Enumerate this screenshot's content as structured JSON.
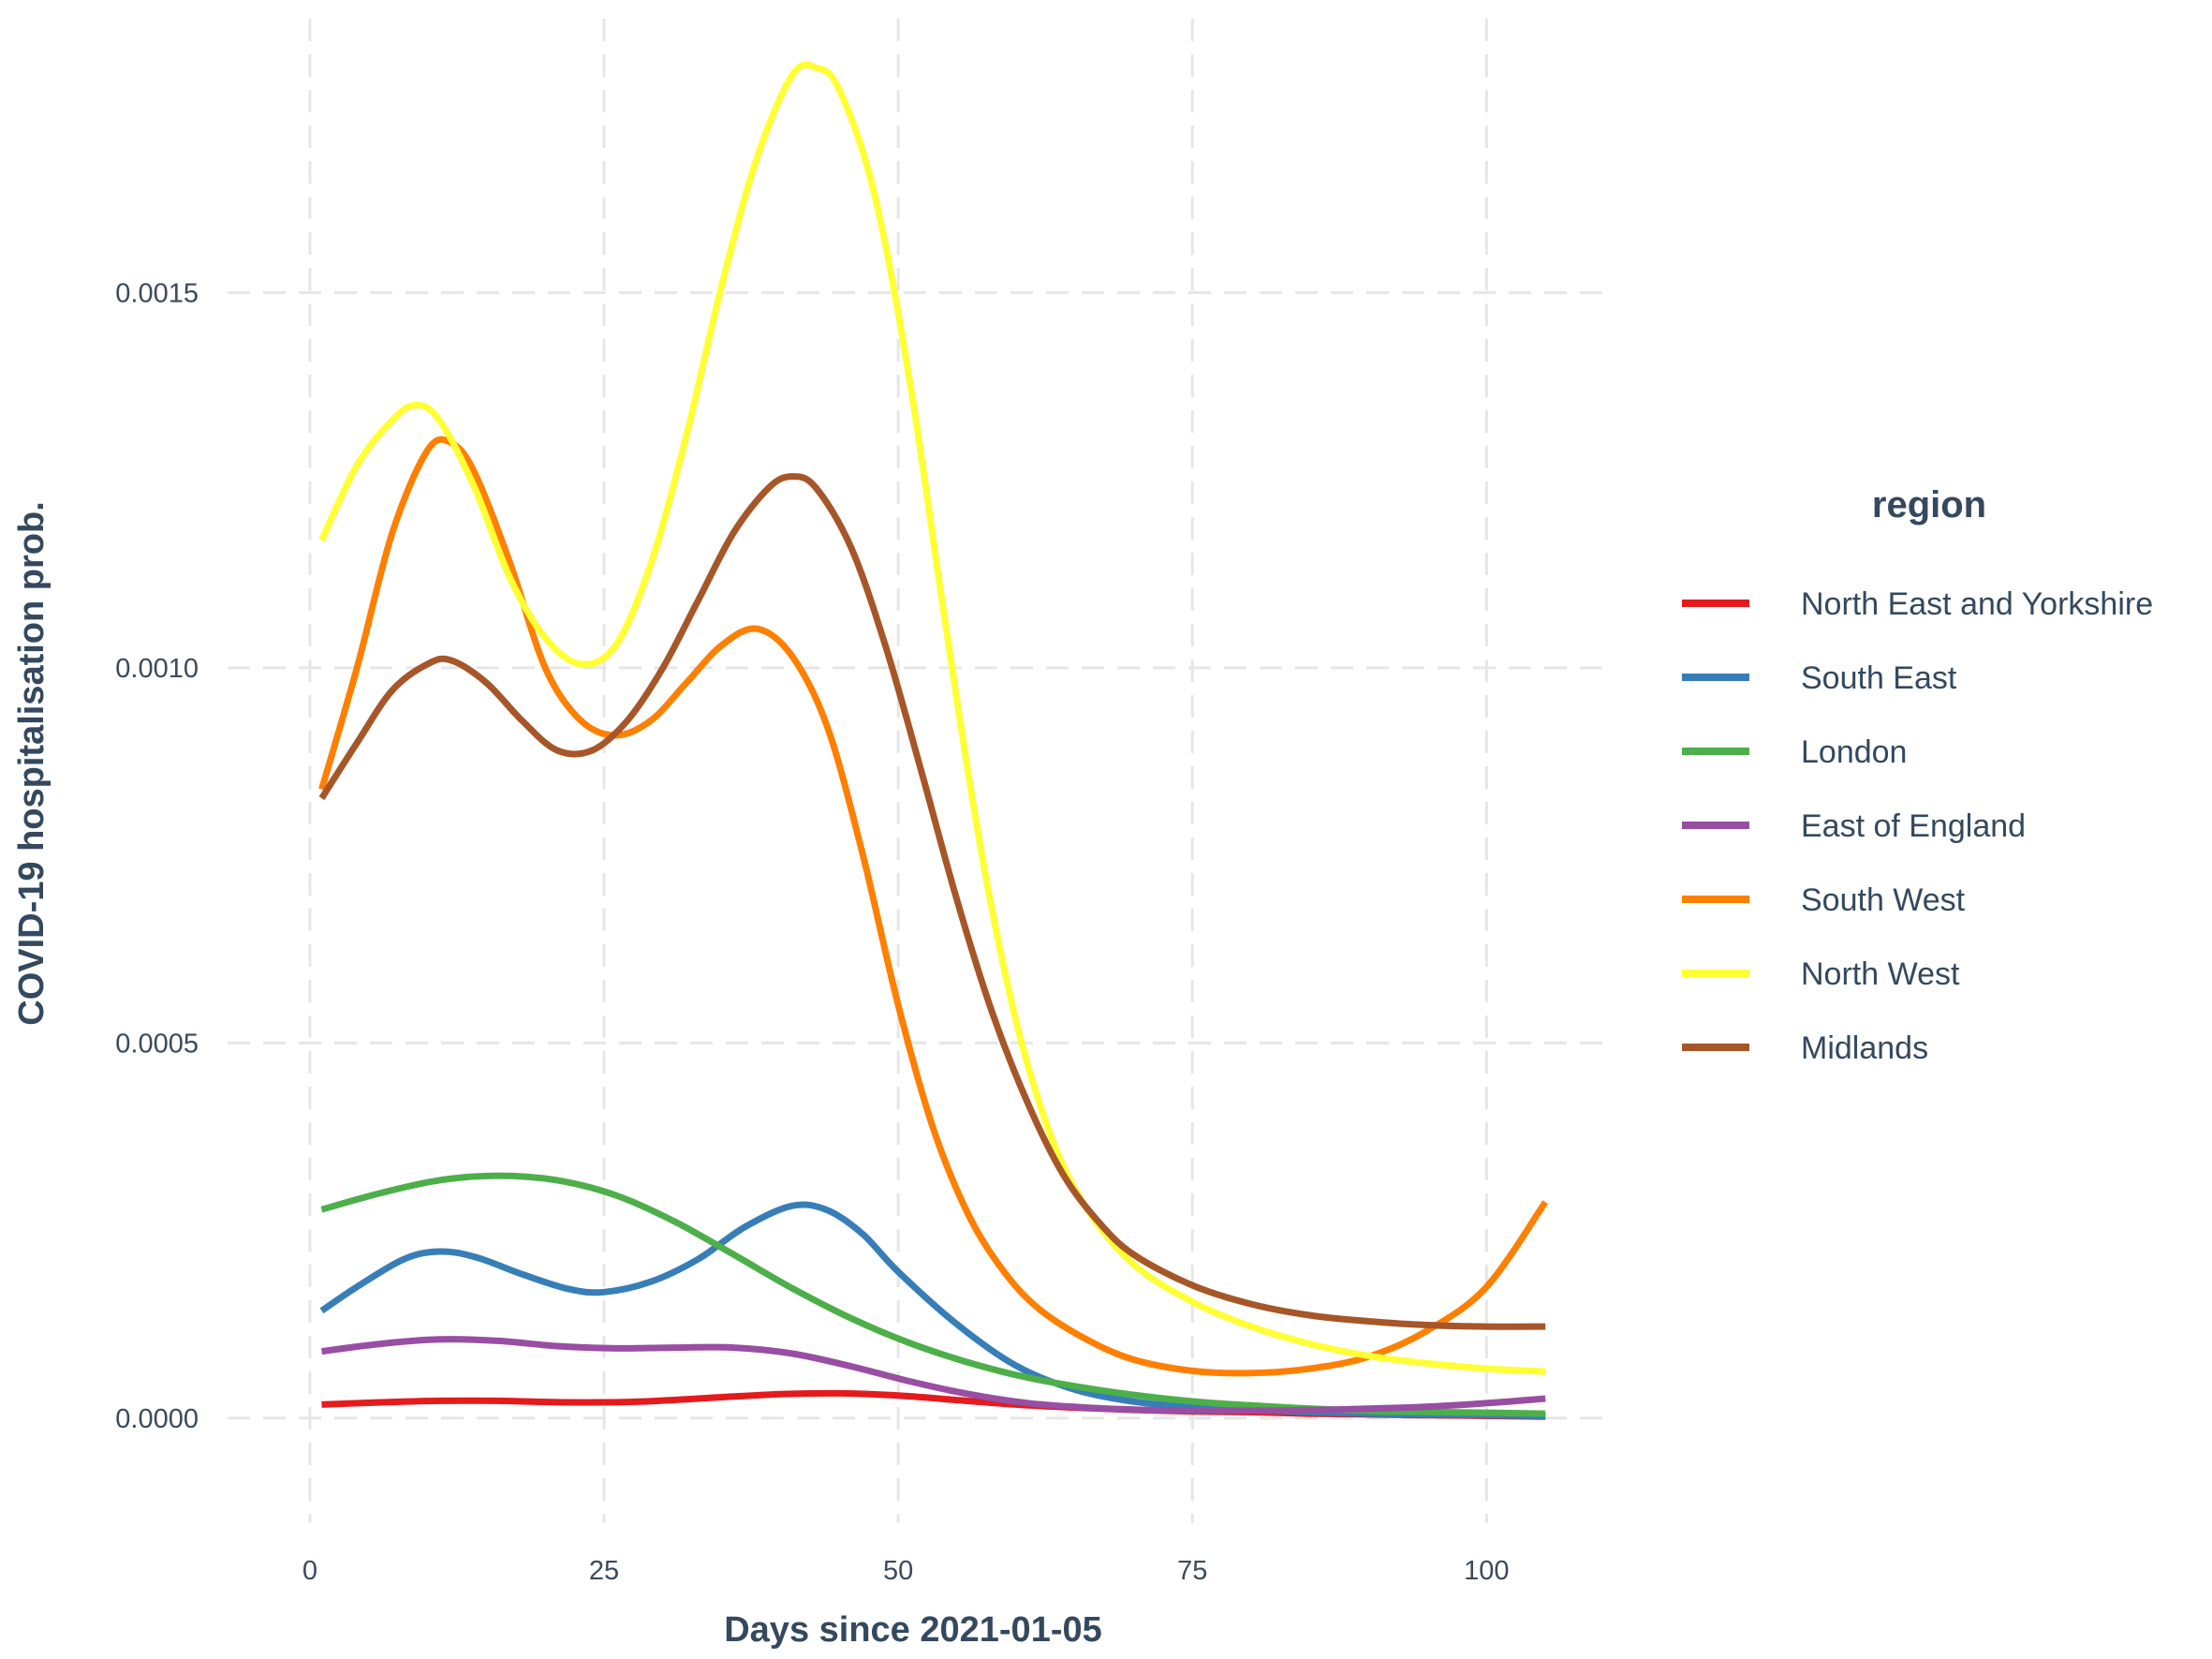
{
  "chart_data": {
    "type": "line",
    "xlabel": "Days since 2021-01-05",
    "ylabel": "COVID-19 hospitalisation prob.",
    "xlim": [
      -7,
      110
    ],
    "ylim": [
      -0.00014,
      0.00189
    ],
    "x_ticks": [
      0,
      25,
      50,
      75,
      100
    ],
    "x_tick_labels": [
      "0",
      "25",
      "50",
      "75",
      "100"
    ],
    "y_ticks": [
      0,
      0.0005,
      0.001,
      0.0015
    ],
    "y_tick_labels": [
      "0.0000",
      "0.0005",
      "0.0010",
      "0.0015"
    ],
    "grid": true,
    "legend": {
      "title": "region",
      "position": "right"
    },
    "series": [
      {
        "name": "North East and Yorkshire",
        "color": "#e41a1c",
        "points": [
          [
            1,
            1.8e-05
          ],
          [
            6,
            2.1e-05
          ],
          [
            11,
            2.3e-05
          ],
          [
            16,
            2.3e-05
          ],
          [
            22,
            2.1e-05
          ],
          [
            28,
            2.2e-05
          ],
          [
            34,
            2.7e-05
          ],
          [
            40,
            3.2e-05
          ],
          [
            45,
            3.3e-05
          ],
          [
            50,
            3e-05
          ],
          [
            55,
            2.4e-05
          ],
          [
            60,
            1.8e-05
          ],
          [
            65,
            1.4e-05
          ],
          [
            70,
            1.1e-05
          ],
          [
            75,
            9e-06
          ],
          [
            80,
            8e-06
          ],
          [
            85,
            6e-06
          ],
          [
            90,
            5e-06
          ],
          [
            95,
            4e-06
          ],
          [
            100,
            3e-06
          ],
          [
            105,
            2e-06
          ]
        ]
      },
      {
        "name": "South East",
        "color": "#377eb8",
        "points": [
          [
            1,
            0.000143
          ],
          [
            4,
            0.000175
          ],
          [
            8,
            0.000212
          ],
          [
            11,
            0.000222
          ],
          [
            14,
            0.000215
          ],
          [
            18,
            0.000192
          ],
          [
            22,
            0.000172
          ],
          [
            25,
            0.000168
          ],
          [
            29,
            0.000182
          ],
          [
            33,
            0.000212
          ],
          [
            37,
            0.000255
          ],
          [
            41,
            0.000283
          ],
          [
            44,
            0.000277
          ],
          [
            47,
            0.000245
          ],
          [
            50,
            0.000195
          ],
          [
            55,
            0.000125
          ],
          [
            60,
            7e-05
          ],
          [
            65,
            3.8e-05
          ],
          [
            70,
            2.2e-05
          ],
          [
            75,
            1.5e-05
          ],
          [
            80,
            1.1e-05
          ],
          [
            85,
            8e-06
          ],
          [
            90,
            6e-06
          ],
          [
            95,
            5e-06
          ],
          [
            100,
            4e-06
          ],
          [
            105,
            3e-06
          ]
        ]
      },
      {
        "name": "London",
        "color": "#4daf4a",
        "points": [
          [
            1,
            0.000278
          ],
          [
            6,
            0.0003
          ],
          [
            11,
            0.000317
          ],
          [
            16,
            0.000323
          ],
          [
            21,
            0.000317
          ],
          [
            26,
            0.000297
          ],
          [
            31,
            0.000262
          ],
          [
            36,
            0.000218
          ],
          [
            41,
            0.000173
          ],
          [
            46,
            0.000133
          ],
          [
            51,
            0.0001
          ],
          [
            56,
            7.4e-05
          ],
          [
            61,
            5.4e-05
          ],
          [
            66,
            4e-05
          ],
          [
            71,
            2.9e-05
          ],
          [
            76,
            2.1e-05
          ],
          [
            81,
            1.6e-05
          ],
          [
            86,
            1.2e-05
          ],
          [
            91,
            9e-06
          ],
          [
            96,
            8e-06
          ],
          [
            101,
            7e-06
          ],
          [
            105,
            6e-06
          ]
        ]
      },
      {
        "name": "East of England",
        "color": "#984ea3",
        "points": [
          [
            1,
            8.9e-05
          ],
          [
            6,
            9.9e-05
          ],
          [
            11,
            0.000105
          ],
          [
            16,
            0.000103
          ],
          [
            21,
            9.6e-05
          ],
          [
            26,
            9.3e-05
          ],
          [
            31,
            9.4e-05
          ],
          [
            36,
            9.4e-05
          ],
          [
            41,
            8.6e-05
          ],
          [
            46,
            6.9e-05
          ],
          [
            51,
            4.9e-05
          ],
          [
            56,
            3.2e-05
          ],
          [
            61,
            2e-05
          ],
          [
            66,
            1.4e-05
          ],
          [
            71,
            1.1e-05
          ],
          [
            76,
            1e-05
          ],
          [
            81,
            1e-05
          ],
          [
            86,
            1.1e-05
          ],
          [
            91,
            1.3e-05
          ],
          [
            96,
            1.6e-05
          ],
          [
            101,
            2.1e-05
          ],
          [
            105,
            2.6e-05
          ]
        ]
      },
      {
        "name": "South West",
        "color": "#ff7f00",
        "points": [
          [
            1,
            0.000838
          ],
          [
            4,
            0.001
          ],
          [
            7,
            0.00118
          ],
          [
            10,
            0.00129
          ],
          [
            12,
            0.0013
          ],
          [
            14,
            0.00126
          ],
          [
            17,
            0.00114
          ],
          [
            20,
            0.001
          ],
          [
            23,
            0.00093
          ],
          [
            26,
            0.00091
          ],
          [
            29,
            0.00093
          ],
          [
            32,
            0.00098
          ],
          [
            35,
            0.00103
          ],
          [
            38,
            0.001052
          ],
          [
            41,
            0.001015
          ],
          [
            44,
            0.00092
          ],
          [
            47,
            0.00075
          ],
          [
            50,
            0.00055
          ],
          [
            53,
            0.000385
          ],
          [
            56,
            0.00027
          ],
          [
            59,
            0.000195
          ],
          [
            62,
            0.000145
          ],
          [
            66,
            0.000105
          ],
          [
            70,
            7.8e-05
          ],
          [
            75,
            6.3e-05
          ],
          [
            80,
            6e-05
          ],
          [
            85,
            6.6e-05
          ],
          [
            90,
            8.2e-05
          ],
          [
            95,
            0.000117
          ],
          [
            100,
            0.000175
          ],
          [
            105,
            0.000288
          ]
        ]
      },
      {
        "name": "North West",
        "color": "#ffff33",
        "points": [
          [
            1,
            0.00117
          ],
          [
            4,
            0.00127
          ],
          [
            7,
            0.00133
          ],
          [
            9,
            0.00135
          ],
          [
            11,
            0.00133
          ],
          [
            14,
            0.00124
          ],
          [
            17,
            0.00112
          ],
          [
            20,
            0.00104
          ],
          [
            23,
            0.001005
          ],
          [
            26,
            0.00103
          ],
          [
            29,
            0.00114
          ],
          [
            32,
            0.00131
          ],
          [
            35,
            0.00151
          ],
          [
            38,
            0.00168
          ],
          [
            41,
            0.00179
          ],
          [
            43,
            0.0018
          ],
          [
            45,
            0.00177
          ],
          [
            48,
            0.00163
          ],
          [
            51,
            0.00138
          ],
          [
            54,
            0.00106
          ],
          [
            57,
            0.00076
          ],
          [
            60,
            0.00053
          ],
          [
            63,
            0.000375
          ],
          [
            66,
            0.00028
          ],
          [
            70,
            0.000205
          ],
          [
            75,
            0.000155
          ],
          [
            80,
            0.000122
          ],
          [
            85,
            9.9e-05
          ],
          [
            90,
            8.3e-05
          ],
          [
            95,
            7.3e-05
          ],
          [
            100,
            6.6e-05
          ],
          [
            105,
            6.2e-05
          ]
        ]
      },
      {
        "name": "Midlands",
        "color": "#a65628",
        "points": [
          [
            1,
            0.000826
          ],
          [
            4,
            0.0009
          ],
          [
            7,
            0.00097
          ],
          [
            10,
            0.001005
          ],
          [
            12,
            0.00101
          ],
          [
            15,
            0.00098
          ],
          [
            18,
            0.00093
          ],
          [
            21,
            0.00089
          ],
          [
            24,
            0.00089
          ],
          [
            27,
            0.00093
          ],
          [
            30,
            0.001
          ],
          [
            33,
            0.00109
          ],
          [
            36,
            0.00118
          ],
          [
            39,
            0.00124
          ],
          [
            41,
            0.001255
          ],
          [
            43,
            0.00124
          ],
          [
            46,
            0.00116
          ],
          [
            49,
            0.001025
          ],
          [
            52,
            0.00086
          ],
          [
            55,
            0.00069
          ],
          [
            58,
            0.00054
          ],
          [
            61,
            0.00042
          ],
          [
            64,
            0.000325
          ],
          [
            67,
            0.000262
          ],
          [
            70,
            0.000218
          ],
          [
            75,
            0.000177
          ],
          [
            80,
            0.000152
          ],
          [
            85,
            0.000137
          ],
          [
            90,
            0.000129
          ],
          [
            95,
            0.000124
          ],
          [
            100,
            0.000122
          ],
          [
            105,
            0.000122
          ]
        ]
      }
    ]
  }
}
